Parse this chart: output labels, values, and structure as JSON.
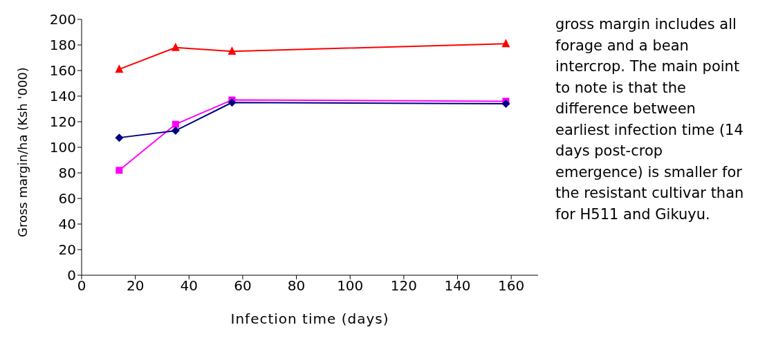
{
  "chart_data": {
    "type": "line",
    "xlabel": "Infection time (days)",
    "ylabel": "Gross margin/ha (Ksh '000)",
    "x": [
      14,
      35,
      56,
      158
    ],
    "series": [
      {
        "color": "#ff0000",
        "marker": "triangle",
        "values": [
          161,
          178,
          175,
          181
        ]
      },
      {
        "color": "#ff00ff",
        "marker": "square",
        "values": [
          82,
          118,
          137,
          136
        ]
      },
      {
        "color": "#000080",
        "marker": "diamond",
        "values": [
          107.5,
          113,
          135,
          134
        ]
      }
    ],
    "xlim": [
      0,
      170
    ],
    "xticks": [
      0,
      20,
      40,
      60,
      80,
      100,
      120,
      140,
      160
    ],
    "ylim": [
      0,
      200
    ],
    "yticks": [
      0,
      20,
      40,
      60,
      80,
      100,
      120,
      140,
      160,
      180,
      200
    ],
    "grid": false,
    "legend": false,
    "annotations": [
      "gross margin includes all forage and a bean intercrop. The main point to note is that the difference between earliest infection time (14 days post-crop emergence) is smaller for the resistant cultivar than for H511 and Gikuyu."
    ]
  }
}
